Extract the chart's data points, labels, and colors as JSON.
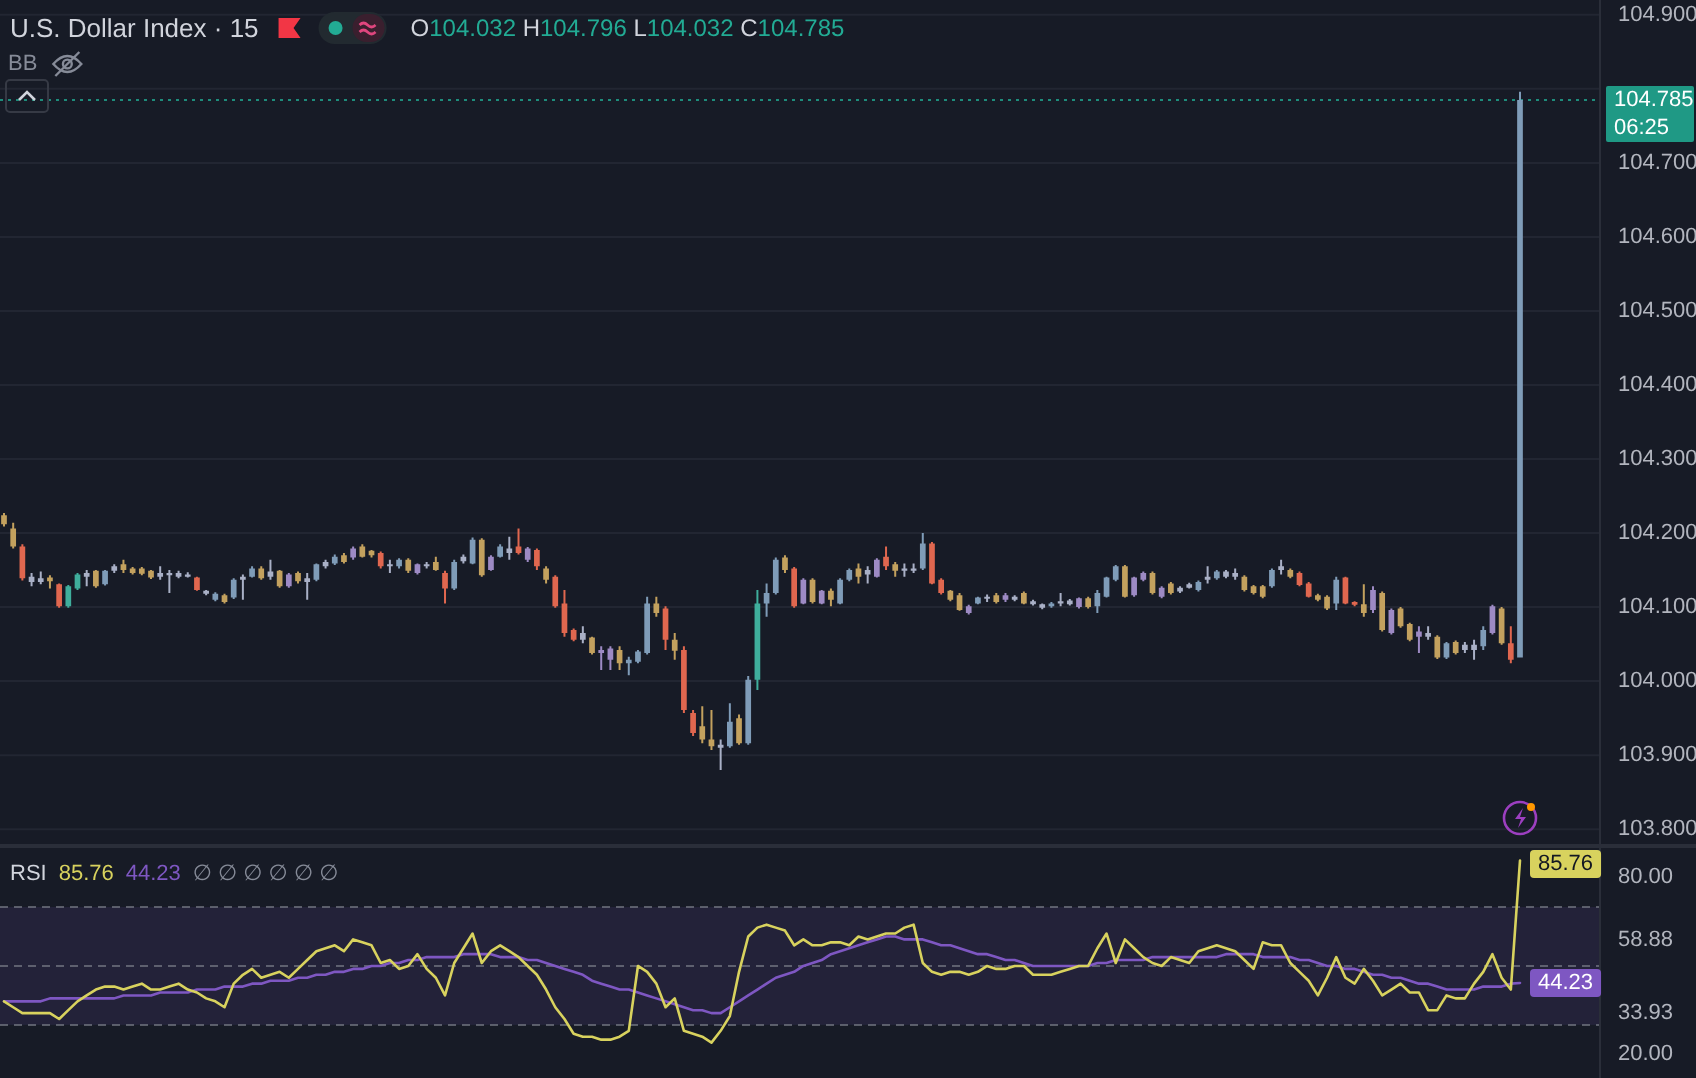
{
  "chart_data": [
    {
      "type": "candlestick",
      "title": "U.S. Dollar Index · 15",
      "subtitle": "O104.032 H104.796 L104.032 C104.785",
      "annotations": [
        "BB",
        "06:25"
      ],
      "categories": [
        null,
        null,
        null,
        null,
        null,
        null,
        null,
        null,
        null,
        null,
        null,
        null,
        null,
        null,
        null,
        null,
        null,
        null,
        null,
        null,
        null,
        null,
        null,
        null,
        null,
        null,
        null,
        null,
        null,
        null,
        null,
        null,
        null,
        null,
        null,
        null,
        null,
        null,
        null,
        null,
        null,
        null,
        null,
        null,
        null,
        null,
        null,
        null,
        null,
        null,
        null,
        null,
        null,
        null,
        null,
        null,
        null,
        null,
        null,
        null,
        null,
        null,
        null,
        null,
        null,
        null,
        null,
        null,
        null,
        null,
        null,
        null,
        null,
        null,
        null,
        null,
        null,
        null,
        null,
        null,
        null,
        null,
        null,
        null,
        null,
        null,
        null,
        null,
        null,
        null,
        null,
        null,
        null,
        null,
        null,
        null,
        null,
        null,
        null,
        null,
        null,
        null,
        null,
        null,
        null,
        null,
        null,
        null,
        null,
        null,
        null,
        null,
        null,
        null,
        null,
        null,
        null,
        null,
        null,
        null,
        null,
        null,
        null,
        null,
        null,
        null,
        null,
        null,
        null,
        null,
        null,
        null,
        null,
        null,
        null,
        null,
        null,
        null,
        null,
        null,
        null,
        null,
        null,
        null,
        null,
        null,
        null,
        null,
        null,
        null,
        null,
        null,
        null,
        null,
        null,
        null,
        null,
        null,
        null,
        null,
        null,
        null,
        null,
        null,
        null,
        null
      ],
      "ohlc": [
        [
          104.224,
          104.227,
          104.209,
          104.212
        ],
        [
          104.206,
          104.214,
          104.179,
          104.182
        ],
        [
          104.182,
          104.185,
          104.136,
          104.139
        ],
        [
          104.134,
          104.146,
          104.128,
          104.141
        ],
        [
          104.134,
          104.148,
          104.131,
          104.139
        ],
        [
          104.14,
          104.143,
          104.125,
          104.135
        ],
        [
          104.131,
          104.132,
          104.099,
          104.101
        ],
        [
          104.101,
          104.13,
          104.099,
          104.128
        ],
        [
          104.125,
          104.146,
          104.123,
          104.144
        ],
        [
          104.141,
          104.15,
          104.128,
          104.146
        ],
        [
          104.149,
          104.15,
          104.126,
          104.128
        ],
        [
          104.131,
          104.15,
          104.129,
          104.149
        ],
        [
          104.149,
          104.158,
          104.146,
          104.155
        ],
        [
          104.158,
          104.164,
          104.146,
          104.15
        ],
        [
          104.152,
          104.154,
          104.144,
          104.146
        ],
        [
          104.152,
          104.154,
          104.143,
          104.145
        ],
        [
          104.149,
          104.15,
          104.138,
          104.14
        ],
        [
          104.141,
          104.155,
          104.137,
          104.146
        ],
        [
          104.143,
          104.15,
          104.119,
          104.146
        ],
        [
          104.141,
          104.149,
          104.139,
          104.146
        ],
        [
          104.141,
          104.147,
          104.14,
          104.144
        ],
        [
          104.14,
          104.141,
          104.122,
          104.123
        ],
        [
          104.118,
          104.123,
          104.116,
          104.122
        ],
        [
          104.11,
          104.12,
          104.108,
          104.118
        ],
        [
          104.116,
          104.118,
          104.105,
          104.107
        ],
        [
          104.113,
          104.139,
          104.111,
          104.137
        ],
        [
          104.137,
          104.144,
          104.11,
          104.141
        ],
        [
          104.141,
          104.155,
          104.14,
          104.152
        ],
        [
          104.152,
          104.155,
          104.137,
          104.139
        ],
        [
          104.141,
          104.164,
          104.137,
          104.148
        ],
        [
          104.149,
          104.15,
          104.126,
          104.128
        ],
        [
          104.128,
          104.146,
          104.126,
          104.144
        ],
        [
          104.146,
          104.148,
          104.132,
          104.135
        ],
        [
          104.134,
          104.146,
          104.11,
          104.139
        ],
        [
          104.137,
          104.159,
          104.135,
          104.158
        ],
        [
          104.155,
          104.164,
          104.152,
          104.161
        ],
        [
          104.159,
          104.171,
          104.157,
          104.168
        ],
        [
          104.17,
          104.173,
          104.159,
          104.161
        ],
        [
          104.167,
          104.182,
          104.164,
          104.179
        ],
        [
          104.182,
          104.185,
          104.167,
          104.168
        ],
        [
          104.176,
          104.177,
          104.167,
          104.17
        ],
        [
          104.173,
          104.175,
          104.152,
          104.155
        ],
        [
          104.155,
          104.164,
          104.146,
          104.158
        ],
        [
          104.155,
          104.166,
          104.152,
          104.164
        ],
        [
          104.164,
          104.166,
          104.146,
          104.149
        ],
        [
          104.146,
          104.159,
          104.144,
          104.158
        ],
        [
          104.155,
          104.161,
          104.152,
          104.158
        ],
        [
          104.161,
          104.168,
          104.149,
          104.15
        ],
        [
          104.146,
          104.149,
          104.105,
          104.125
        ],
        [
          104.125,
          104.164,
          104.123,
          104.161
        ],
        [
          104.162,
          104.171,
          104.159,
          104.168
        ],
        [
          104.159,
          104.194,
          104.158,
          104.191
        ],
        [
          104.191,
          104.193,
          104.141,
          104.143
        ],
        [
          104.15,
          104.17,
          104.149,
          104.168
        ],
        [
          104.168,
          104.185,
          104.167,
          104.182
        ],
        [
          104.173,
          104.195,
          104.164,
          104.179
        ],
        [
          104.182,
          104.206,
          104.171,
          104.173
        ],
        [
          104.164,
          104.181,
          104.161,
          104.179
        ],
        [
          104.177,
          104.179,
          104.15,
          104.155
        ],
        [
          104.152,
          104.155,
          104.132,
          104.137
        ],
        [
          104.141,
          104.143,
          104.099,
          104.101
        ],
        [
          104.105,
          104.123,
          104.06,
          104.065
        ],
        [
          104.069,
          104.071,
          104.054,
          104.056
        ],
        [
          104.056,
          104.074,
          104.051,
          104.065
        ],
        [
          104.059,
          104.06,
          104.036,
          104.038
        ],
        [
          104.038,
          104.047,
          104.015,
          104.042
        ],
        [
          104.029,
          104.047,
          104.015,
          104.044
        ],
        [
          104.042,
          104.047,
          104.015,
          104.024
        ],
        [
          104.024,
          104.033,
          104.008,
          104.029
        ],
        [
          104.026,
          104.042,
          104.024,
          104.04
        ],
        [
          104.038,
          104.114,
          104.036,
          104.105
        ],
        [
          104.105,
          104.114,
          104.087,
          104.092
        ],
        [
          104.098,
          104.101,
          104.042,
          104.056
        ],
        [
          104.056,
          104.065,
          104.029,
          104.041
        ],
        [
          104.042,
          104.047,
          103.957,
          103.961
        ],
        [
          103.957,
          103.961,
          103.926,
          103.93
        ],
        [
          103.939,
          103.966,
          103.916,
          103.921
        ],
        [
          103.921,
          103.961,
          103.907,
          103.912
        ],
        [
          103.91,
          103.921,
          103.88,
          103.914
        ],
        [
          103.912,
          103.97,
          103.91,
          103.945
        ],
        [
          103.95,
          103.955,
          103.914,
          103.916
        ],
        [
          103.916,
          104.007,
          103.914,
          104.002
        ],
        [
          104.002,
          104.123,
          103.988,
          104.105
        ],
        [
          104.105,
          104.132,
          104.087,
          104.119
        ],
        [
          104.119,
          104.167,
          104.117,
          104.164
        ],
        [
          104.167,
          104.17,
          104.146,
          104.15
        ],
        [
          104.152,
          104.154,
          104.099,
          104.101
        ],
        [
          104.105,
          104.139,
          104.104,
          104.137
        ],
        [
          104.137,
          104.139,
          104.105,
          104.107
        ],
        [
          104.105,
          104.123,
          104.104,
          104.122
        ],
        [
          104.122,
          104.125,
          104.101,
          104.11
        ],
        [
          104.105,
          104.139,
          104.104,
          104.137
        ],
        [
          104.137,
          104.152,
          104.135,
          104.15
        ],
        [
          104.152,
          104.159,
          104.132,
          104.141
        ],
        [
          104.144,
          104.155,
          104.132,
          104.15
        ],
        [
          104.141,
          104.166,
          104.14,
          104.164
        ],
        [
          104.168,
          104.182,
          104.15,
          104.155
        ],
        [
          104.158,
          104.161,
          104.141,
          104.149
        ],
        [
          104.149,
          104.159,
          104.141,
          104.152
        ],
        [
          104.149,
          104.159,
          104.146,
          104.152
        ],
        [
          104.152,
          104.2,
          104.15,
          104.186
        ],
        [
          104.186,
          104.188,
          104.131,
          104.132
        ],
        [
          104.137,
          104.139,
          104.117,
          104.119
        ],
        [
          104.122,
          104.123,
          104.108,
          104.11
        ],
        [
          104.116,
          104.119,
          104.095,
          104.096
        ],
        [
          104.092,
          104.103,
          104.09,
          104.101
        ],
        [
          104.105,
          104.114,
          104.104,
          104.113
        ],
        [
          104.112,
          104.117,
          104.107,
          104.114
        ],
        [
          104.116,
          104.119,
          104.105,
          104.107
        ],
        [
          104.11,
          104.119,
          104.107,
          104.116
        ],
        [
          104.11,
          104.116,
          104.108,
          104.114
        ],
        [
          104.119,
          104.121,
          104.104,
          104.105
        ],
        [
          104.104,
          104.11,
          104.102,
          104.108
        ],
        [
          104.099,
          104.105,
          104.097,
          104.104
        ],
        [
          104.101,
          104.107,
          104.099,
          104.105
        ],
        [
          104.105,
          104.119,
          104.101,
          104.108
        ],
        [
          104.104,
          104.111,
          104.102,
          104.109
        ],
        [
          104.1,
          104.113,
          104.098,
          104.112
        ],
        [
          104.112,
          104.114,
          104.098,
          104.1
        ],
        [
          104.101,
          104.123,
          104.092,
          104.119
        ],
        [
          104.114,
          104.141,
          104.113,
          104.14
        ],
        [
          104.137,
          104.157,
          104.135,
          104.155
        ],
        [
          104.155,
          104.157,
          104.113,
          104.114
        ],
        [
          104.116,
          104.141,
          104.114,
          104.14
        ],
        [
          104.137,
          104.148,
          104.135,
          104.146
        ],
        [
          104.146,
          104.148,
          104.117,
          104.119
        ],
        [
          104.114,
          104.128,
          104.112,
          104.126
        ],
        [
          104.132,
          104.134,
          104.117,
          104.119
        ],
        [
          104.121,
          104.128,
          104.119,
          104.126
        ],
        [
          104.126,
          104.133,
          104.125,
          104.131
        ],
        [
          104.123,
          104.136,
          104.121,
          104.134
        ],
        [
          104.137,
          104.155,
          104.132,
          104.141
        ],
        [
          104.139,
          104.15,
          104.137,
          104.148
        ],
        [
          104.141,
          104.15,
          104.139,
          104.148
        ],
        [
          104.141,
          104.152,
          104.137,
          104.146
        ],
        [
          104.141,
          104.143,
          104.121,
          104.123
        ],
        [
          104.128,
          104.13,
          104.117,
          104.119
        ],
        [
          104.128,
          104.13,
          104.112,
          104.114
        ],
        [
          104.128,
          104.152,
          104.126,
          104.15
        ],
        [
          104.15,
          104.164,
          104.144,
          104.155
        ],
        [
          104.15,
          104.152,
          104.139,
          104.141
        ],
        [
          104.146,
          104.148,
          104.128,
          104.13
        ],
        [
          104.132,
          104.134,
          104.113,
          104.114
        ],
        [
          104.116,
          104.118,
          104.108,
          104.11
        ],
        [
          104.114,
          104.116,
          104.096,
          104.098
        ],
        [
          104.105,
          104.141,
          104.096,
          104.137
        ],
        [
          104.14,
          104.141,
          104.104,
          104.105
        ],
        [
          104.107,
          104.108,
          104.101,
          104.103
        ],
        [
          104.104,
          104.131,
          104.087,
          104.092
        ],
        [
          104.096,
          104.128,
          104.092,
          104.123
        ],
        [
          104.119,
          104.121,
          104.067,
          104.069
        ],
        [
          104.065,
          104.098,
          104.063,
          104.096
        ],
        [
          104.098,
          104.1,
          104.072,
          104.074
        ],
        [
          104.077,
          104.079,
          104.054,
          104.056
        ],
        [
          104.06,
          104.074,
          104.038,
          104.067
        ],
        [
          104.06,
          104.074,
          104.056,
          104.065
        ],
        [
          104.06,
          104.062,
          104.03,
          104.032
        ],
        [
          104.032,
          104.053,
          104.03,
          104.051
        ],
        [
          104.053,
          104.055,
          104.036,
          104.038
        ],
        [
          104.042,
          104.053,
          104.038,
          104.049
        ],
        [
          104.042,
          104.056,
          104.029,
          104.049
        ],
        [
          104.047,
          104.074,
          104.042,
          104.069
        ],
        [
          104.065,
          104.103,
          104.063,
          104.101
        ],
        [
          104.098,
          104.1,
          104.049,
          104.051
        ],
        [
          104.051,
          104.074,
          104.024,
          104.029
        ],
        [
          104.032,
          104.796,
          104.032,
          104.785
        ]
      ],
      "colors": [
        "#c3a15e",
        "#c3a15e",
        "#e0674f",
        "#a9b0c6",
        "#a9b0c6",
        "#c3a15e",
        "#e0674f",
        "#3fae9c",
        "#3fae9c",
        "#a9b0c6",
        "#c3a15e",
        "#7f9cb8",
        "#a9b0c6",
        "#c3a15e",
        "#c3a15e",
        "#c3a15e",
        "#c3a15e",
        "#a9b0c6",
        "#a9b0c6",
        "#a9b0c6",
        "#a9b0c6",
        "#e0674f",
        "#a9b0c6",
        "#7f9cb8",
        "#c3a15e",
        "#7f9cb8",
        "#a9b0c6",
        "#7f9cb8",
        "#c3a15e",
        "#a9b0c6",
        "#c3a15e",
        "#9d8ac4",
        "#c3a15e",
        "#a9b0c6",
        "#7f9cb8",
        "#a9b0c6",
        "#7f9cb8",
        "#c3a15e",
        "#9d8ac4",
        "#c3a15e",
        "#c3a15e",
        "#e0674f",
        "#a9b0c6",
        "#7f9cb8",
        "#c3a15e",
        "#9d8ac4",
        "#a9b0c6",
        "#c3a15e",
        "#e0674f",
        "#7f9cb8",
        "#a9b0c6",
        "#7f9cb8",
        "#c3a15e",
        "#9d8ac4",
        "#7f9cb8",
        "#a9b0c6",
        "#e0674f",
        "#9d8ac4",
        "#e0674f",
        "#c3a15e",
        "#e0674f",
        "#e0674f",
        "#e0674f",
        "#a9b0c6",
        "#c3a15e",
        "#9d8ac4",
        "#9d8ac4",
        "#c3a15e",
        "#7f9cb8",
        "#7f9cb8",
        "#7f9cb8",
        "#c3a15e",
        "#e0674f",
        "#c3a15e",
        "#e0674f",
        "#e0674f",
        "#c3a15e",
        "#c3a15e",
        "#a9b0c6",
        "#7f9cb8",
        "#c3a15e",
        "#7f9cb8",
        "#3fae9c",
        "#7f9cb8",
        "#7f9cb8",
        "#c3a15e",
        "#e0674f",
        "#9d8ac4",
        "#c3a15e",
        "#9d8ac4",
        "#c3a15e",
        "#7f9cb8",
        "#7f9cb8",
        "#c3a15e",
        "#a9b0c6",
        "#9d8ac4",
        "#e0674f",
        "#c3a15e",
        "#a9b0c6",
        "#a9b0c6",
        "#7f9cb8",
        "#e0674f",
        "#e0674f",
        "#c3a15e",
        "#c3a15e",
        "#9d8ac4",
        "#7f9cb8",
        "#a9b0c6",
        "#c3a15e",
        "#9d8ac4",
        "#a9b0c6",
        "#c3a15e",
        "#a9b0c6",
        "#a9b0c6",
        "#7f9cb8",
        "#a9b0c6",
        "#a9b0c6",
        "#9d8ac4",
        "#c3a15e",
        "#7f9cb8",
        "#7f9cb8",
        "#7f9cb8",
        "#c3a15e",
        "#9d8ac4",
        "#9d8ac4",
        "#c3a15e",
        "#9d8ac4",
        "#c3a15e",
        "#a9b0c6",
        "#a9b0c6",
        "#7f9cb8",
        "#a9b0c6",
        "#7f9cb8",
        "#a9b0c6",
        "#a9b0c6",
        "#c3a15e",
        "#c3a15e",
        "#c3a15e",
        "#7f9cb8",
        "#a9b0c6",
        "#c3a15e",
        "#e0674f",
        "#e0674f",
        "#c3a15e",
        "#c3a15e",
        "#7f9cb8",
        "#e0674f",
        "#e0674f",
        "#c3a15e",
        "#9d8ac4",
        "#c3a15e",
        "#9d8ac4",
        "#c3a15e",
        "#c3a15e",
        "#9d8ac4",
        "#a9b0c6",
        "#c3a15e",
        "#7f9cb8",
        "#c3a15e",
        "#a9b0c6",
        "#a9b0c6",
        "#7f9cb8",
        "#9d8ac4",
        "#c3a15e",
        "#e0674f",
        "#7f9cb8"
      ],
      "ylim": [
        103.78,
        104.92
      ],
      "yticks": [
        {
          "value": 103.8,
          "label": "103.800"
        },
        {
          "value": 103.9,
          "label": "103.900"
        },
        {
          "value": 104,
          "label": "104.000"
        },
        {
          "value": 104.1,
          "label": "104.100"
        },
        {
          "value": 104.2,
          "label": "104.200"
        },
        {
          "value": 104.3,
          "label": "104.300"
        },
        {
          "value": 104.4,
          "label": "104.400"
        },
        {
          "value": 104.5,
          "label": "104.500"
        },
        {
          "value": 104.6,
          "label": "104.600"
        },
        {
          "value": 104.7,
          "label": "104.700"
        },
        {
          "value": 104.8,
          "label": null
        },
        {
          "value": 104.9,
          "label": "104.900"
        }
      ],
      "grid": "y",
      "ref_lines": [
        {
          "axis": "y",
          "value": 104.785,
          "label": "104.785",
          "color": "#1f9985",
          "line_style": "dotted"
        }
      ]
    },
    {
      "type": "line",
      "title": "RSI",
      "annotations": [
        "85.76",
        "44.23",
        "∅ ∅ ∅ ∅ ∅ ∅"
      ],
      "categories": [
        null,
        null,
        null,
        null,
        null,
        null,
        null,
        null,
        null,
        null,
        null,
        null,
        null,
        null,
        null,
        null,
        null,
        null,
        null,
        null,
        null,
        null,
        null,
        null,
        null,
        null,
        null,
        null,
        null,
        null,
        null,
        null,
        null,
        null,
        null,
        null,
        null,
        null,
        null,
        null,
        null,
        null,
        null,
        null,
        null,
        null,
        null,
        null,
        null,
        null,
        null,
        null,
        null,
        null,
        null,
        null,
        null,
        null,
        null,
        null,
        null,
        null,
        null,
        null,
        null,
        null,
        null,
        null,
        null,
        null,
        null,
        null,
        null,
        null,
        null,
        null,
        null,
        null,
        null,
        null,
        null,
        null,
        null,
        null,
        null,
        null,
        null,
        null,
        null,
        null,
        null,
        null,
        null,
        null,
        null,
        null,
        null,
        null,
        null,
        null,
        null,
        null,
        null,
        null,
        null,
        null,
        null,
        null,
        null,
        null,
        null,
        null,
        null,
        null,
        null,
        null,
        null,
        null,
        null,
        null,
        null,
        null,
        null,
        null,
        null,
        null,
        null,
        null,
        null,
        null,
        null,
        null,
        null,
        null,
        null,
        null,
        null,
        null,
        null,
        null,
        null,
        null,
        null,
        null,
        null,
        null,
        null,
        null,
        null,
        null,
        null,
        null,
        null,
        null,
        null,
        null,
        null,
        null,
        null,
        null,
        null,
        null,
        null,
        null,
        null,
        null
      ],
      "series": [
        {
          "color": "#d8d25e",
          "values": [
            38,
            36,
            34,
            34,
            34,
            34,
            32,
            35,
            38,
            40,
            42,
            43,
            43,
            42,
            43,
            44,
            42,
            42,
            43,
            44,
            42,
            41,
            39,
            38,
            36,
            44,
            47,
            49,
            46,
            47,
            48,
            46,
            49,
            52,
            55,
            56,
            57,
            55,
            59,
            58,
            57,
            51,
            52,
            49,
            50,
            54,
            49,
            46,
            40,
            51,
            56,
            61,
            51,
            55,
            57,
            55,
            53,
            50,
            47,
            42,
            36,
            32,
            27,
            26,
            26,
            25,
            25,
            26,
            28,
            50,
            48,
            44,
            36,
            39,
            28,
            27,
            26,
            24,
            28,
            33,
            48,
            60,
            63,
            64,
            63,
            62,
            57,
            59,
            57,
            57,
            58,
            58,
            57,
            60,
            59,
            60,
            61,
            61,
            63,
            64,
            51,
            48,
            47,
            48,
            48,
            47,
            48,
            50,
            49,
            49,
            50,
            50,
            47,
            47,
            47,
            48,
            49,
            50,
            50,
            56,
            61,
            51,
            59,
            56,
            53,
            51,
            50,
            53,
            52,
            51,
            55,
            56,
            57,
            56,
            55,
            52,
            49,
            58,
            57,
            57,
            51,
            48,
            45,
            40,
            46,
            53,
            46,
            44,
            49,
            45,
            40,
            42,
            44,
            41,
            41,
            35,
            35,
            40,
            39,
            39,
            44,
            48,
            54,
            46,
            42,
            85.76
          ],
          "value_labels": [
            null,
            null,
            null,
            null,
            null,
            null,
            null,
            null,
            null,
            null,
            null,
            null,
            null,
            null,
            null,
            null,
            null,
            null,
            null,
            null,
            null,
            null,
            null,
            null,
            null,
            null,
            null,
            null,
            null,
            null,
            null,
            null,
            null,
            null,
            null,
            null,
            null,
            null,
            null,
            null,
            null,
            null,
            null,
            null,
            null,
            null,
            null,
            null,
            null,
            null,
            null,
            null,
            null,
            null,
            null,
            null,
            null,
            null,
            null,
            null,
            null,
            null,
            null,
            null,
            null,
            null,
            null,
            null,
            null,
            null,
            null,
            null,
            null,
            null,
            null,
            null,
            null,
            null,
            null,
            null,
            null,
            null,
            null,
            null,
            null,
            null,
            null,
            null,
            null,
            null,
            null,
            null,
            null,
            null,
            null,
            null,
            null,
            null,
            null,
            null,
            null,
            null,
            null,
            null,
            null,
            null,
            null,
            null,
            null,
            null,
            null,
            null,
            null,
            null,
            null,
            null,
            null,
            null,
            null,
            null,
            null,
            null,
            null,
            null,
            null,
            null,
            null,
            null,
            null,
            null,
            null,
            null,
            null,
            null,
            null,
            null,
            null,
            null,
            null,
            null,
            null,
            null,
            null,
            null,
            null,
            null,
            null,
            null,
            null,
            null,
            null,
            null,
            null,
            null,
            null,
            null,
            null,
            null,
            null,
            null,
            null,
            null,
            null,
            null,
            null,
            "85.76"
          ]
        },
        {
          "color": "#7e57c2",
          "values": [
            38,
            38,
            38,
            38,
            38,
            39,
            39,
            39,
            39,
            39,
            39,
            39,
            39,
            40,
            40,
            40,
            40,
            41,
            41,
            41,
            41,
            42,
            42,
            42,
            43,
            43,
            43,
            44,
            44,
            45,
            45,
            45,
            46,
            46,
            47,
            47,
            48,
            48,
            49,
            49,
            50,
            50,
            51,
            51,
            52,
            52,
            53,
            53,
            53,
            53,
            54,
            54,
            54,
            54,
            53,
            53,
            53,
            52,
            52,
            51,
            50,
            49,
            48,
            47,
            45,
            44,
            43,
            42,
            42,
            41,
            40,
            39,
            38,
            37,
            36,
            35,
            35,
            34,
            34,
            36,
            38,
            40,
            42,
            44,
            46,
            47,
            48,
            50,
            51,
            52,
            54,
            55,
            56,
            57,
            58,
            59,
            60,
            60,
            59,
            59,
            59,
            58,
            57,
            57,
            56,
            55,
            54,
            54,
            53,
            52,
            52,
            51,
            50,
            50,
            50,
            50,
            50,
            50,
            50,
            51,
            51,
            52,
            52,
            52,
            52,
            53,
            53,
            53,
            53,
            53,
            53,
            53,
            53,
            54,
            54,
            54,
            54,
            53,
            53,
            53,
            53,
            52,
            52,
            51,
            50,
            50,
            49,
            49,
            48,
            47,
            47,
            46,
            46,
            45,
            44,
            44,
            43,
            42,
            42,
            42,
            42,
            43,
            43,
            43,
            44,
            44.23
          ],
          "value_labels": [
            null,
            null,
            null,
            null,
            null,
            null,
            null,
            null,
            null,
            null,
            null,
            null,
            null,
            null,
            null,
            null,
            null,
            null,
            null,
            null,
            null,
            null,
            null,
            null,
            null,
            null,
            null,
            null,
            null,
            null,
            null,
            null,
            null,
            null,
            null,
            null,
            null,
            null,
            null,
            null,
            null,
            null,
            null,
            null,
            null,
            null,
            null,
            null,
            null,
            null,
            null,
            null,
            null,
            null,
            null,
            null,
            null,
            null,
            null,
            null,
            null,
            null,
            null,
            null,
            null,
            null,
            null,
            null,
            null,
            null,
            null,
            null,
            null,
            null,
            null,
            null,
            null,
            null,
            null,
            null,
            null,
            null,
            null,
            null,
            null,
            null,
            null,
            null,
            null,
            null,
            null,
            null,
            null,
            null,
            null,
            null,
            null,
            null,
            null,
            null,
            null,
            null,
            null,
            null,
            null,
            null,
            null,
            null,
            null,
            null,
            null,
            null,
            null,
            null,
            null,
            null,
            null,
            null,
            null,
            null,
            null,
            null,
            null,
            null,
            null,
            null,
            null,
            null,
            null,
            null,
            null,
            null,
            null,
            null,
            null,
            null,
            null,
            null,
            null,
            null,
            null,
            null,
            null,
            null,
            null,
            null,
            null,
            null,
            null,
            null,
            null,
            null,
            null,
            null,
            null,
            null,
            null,
            null,
            null,
            null,
            null,
            null,
            null,
            null,
            null,
            "44.23"
          ]
        }
      ],
      "ylim": [
        12,
        90
      ],
      "yticks": [
        {
          "value": 80,
          "label": "80.00"
        },
        {
          "value": 58.88,
          "label": "58.88"
        },
        {
          "value": 33.93,
          "label": "33.93"
        },
        {
          "value": 20,
          "label": "20.00"
        }
      ],
      "bands": [
        {
          "axis": "y",
          "from": 30,
          "to": 70,
          "color": "#7e57c2"
        }
      ],
      "ref_lines": [
        {
          "axis": "y",
          "value": 70,
          "color": "#787b86",
          "line_style": "dashed"
        },
        {
          "axis": "y",
          "value": 50,
          "color": "#787b86",
          "line_style": "dashed"
        },
        {
          "axis": "y",
          "value": 30,
          "color": "#787b86",
          "line_style": "dashed"
        }
      ]
    }
  ]
}
